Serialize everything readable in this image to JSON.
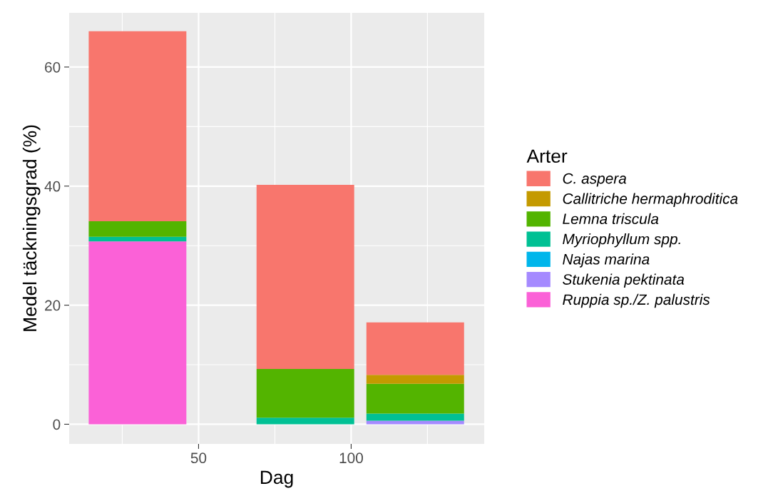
{
  "chart_data": {
    "type": "bar",
    "stacked": true,
    "xlabel": "Dag",
    "ylabel": "Medel täckningsgrad (%)",
    "legend_title": "Arter",
    "x": [
      30,
      85,
      121
    ],
    "series": [
      {
        "name": "Ruppia sp./Z. palustris",
        "color": "#fb61d7",
        "values": [
          30.7,
          0,
          0
        ]
      },
      {
        "name": "Stukenia pektinata",
        "color": "#a58aff",
        "values": [
          0,
          0,
          0.6
        ]
      },
      {
        "name": "Najas marina",
        "color": "#00b6eb",
        "values": [
          0,
          null,
          0
        ]
      },
      {
        "name": "Myriophyllum spp.",
        "color": "#00c094",
        "values": [
          0.8,
          1.1,
          1.2
        ]
      },
      {
        "name": "Lemna triscula",
        "color": "#53b400",
        "values": [
          2.6,
          8.2,
          5.0
        ]
      },
      {
        "name": "Callitriche hermaphroditica",
        "color": "#c49a00",
        "values": [
          0,
          0,
          1.5
        ]
      },
      {
        "name": "C. aspera",
        "color": "#f8766d",
        "values": [
          31.9,
          30.9,
          8.8
        ]
      }
    ],
    "xlim": [
      7.6,
      143.6
    ],
    "xticks": [
      50,
      100
    ],
    "ylim": [
      -3.3,
      69.1
    ],
    "yticks": [
      0,
      20,
      40,
      60
    ],
    "grid": true,
    "legend": "right"
  }
}
